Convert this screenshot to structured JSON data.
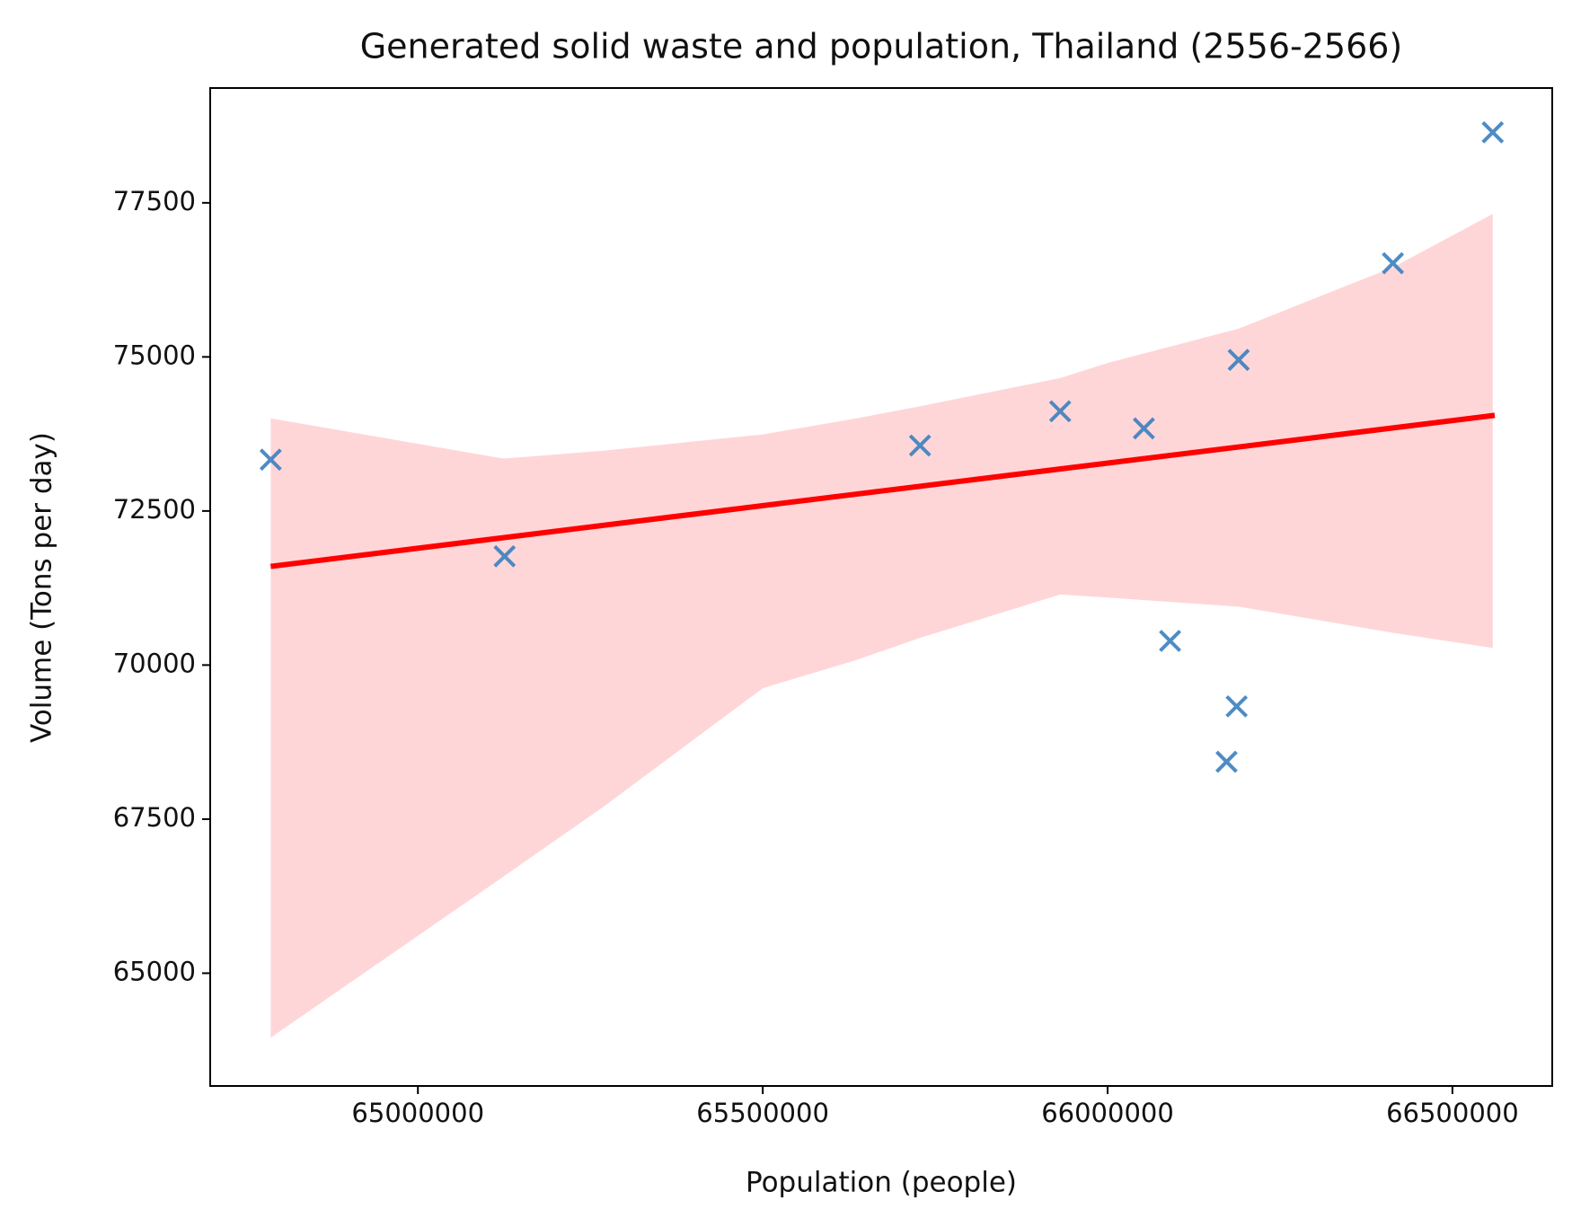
{
  "chart_data": {
    "type": "scatter",
    "title": "Generated solid waste and population, Thailand (2556-2566)",
    "x_label": "Population (people)",
    "y_label": "Volume (Tons per day)",
    "x": [
      64786550,
      65125731,
      65728070,
      65931287,
      66052632,
      66090643,
      66190058,
      66187134,
      66172515,
      66413743,
      66558480
    ],
    "values": [
      73333,
      71765,
      73562,
      74118,
      73840,
      70392,
      74951,
      69330,
      68431,
      76520,
      78644
    ],
    "color": "#3a7fbf",
    "fit": {
      "x": [
        64786550,
        66561403
      ],
      "y": [
        71601,
        74052
      ],
      "color": "#ff0000"
    },
    "band": {
      "x": [
        64786550,
        65124269,
        65270468,
        65500000,
        65635965,
        65728070,
        65931287,
        66000000,
        66190058,
        66413743,
        66558480
      ],
      "upper": [
        74003,
        73350,
        73480,
        73742,
        74003,
        74199,
        74657,
        74902,
        75458,
        76454,
        77320
      ],
      "lower": [
        63954,
        66569,
        67712,
        69624,
        70082,
        70441,
        71144,
        71095,
        70948,
        70523,
        70278
      ],
      "color": "#ffd6d8"
    },
    "xlim": [
      64698830,
      66644737
    ],
    "ylim": [
      63170,
      79363
    ],
    "xticks": [
      65000000,
      65500000,
      66000000,
      66500000
    ],
    "yticks": [
      65000,
      67500,
      70000,
      72500,
      75000,
      77500
    ],
    "grid": false
  }
}
